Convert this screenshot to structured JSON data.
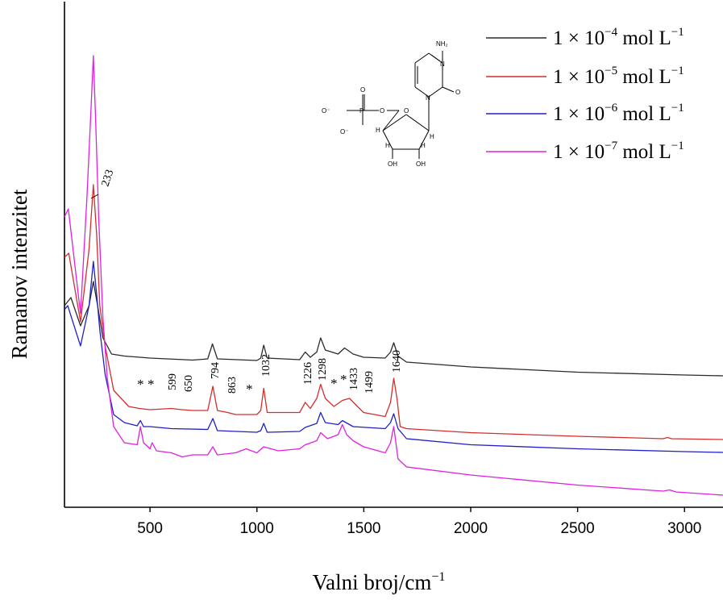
{
  "chart_data": {
    "type": "line",
    "xlabel": "Valni broj/cm",
    "xlabel_sup": "−1",
    "ylabel": "Ramanov intenzitet",
    "xlim": [
      100,
      3180
    ],
    "ylim": [
      0,
      100
    ],
    "x_ticks": [
      "500",
      "1000",
      "1500",
      "2000",
      "2500",
      "3000"
    ],
    "y_ticks_shown": false,
    "legend_position": "top-right",
    "series": [
      {
        "name": "1 × 10",
        "exp": "−4",
        "unit": " mol L",
        "unit_exp": "−1",
        "color": "#2b2b2b",
        "points": [
          [
            100,
            48
          ],
          [
            130,
            50
          ],
          [
            175,
            43
          ],
          [
            215,
            48
          ],
          [
            235,
            54
          ],
          [
            255,
            48
          ],
          [
            280,
            40
          ],
          [
            320,
            36
          ],
          [
            380,
            35.5
          ],
          [
            500,
            35
          ],
          [
            700,
            34.5
          ],
          [
            770,
            34.8
          ],
          [
            792,
            38.5
          ],
          [
            815,
            34.8
          ],
          [
            1000,
            34.4
          ],
          [
            1018,
            35
          ],
          [
            1032,
            38.2
          ],
          [
            1048,
            35
          ],
          [
            1200,
            34.6
          ],
          [
            1226,
            36.5
          ],
          [
            1250,
            35.2
          ],
          [
            1280,
            36.5
          ],
          [
            1298,
            40
          ],
          [
            1320,
            37
          ],
          [
            1380,
            36
          ],
          [
            1410,
            37.5
          ],
          [
            1450,
            36
          ],
          [
            1499,
            35.2
          ],
          [
            1600,
            35
          ],
          [
            1625,
            36.5
          ],
          [
            1640,
            38.8
          ],
          [
            1660,
            35.5
          ],
          [
            1700,
            34
          ],
          [
            2000,
            32.8
          ],
          [
            2500,
            31.5
          ],
          [
            3000,
            30.8
          ],
          [
            3180,
            30.6
          ]
        ]
      },
      {
        "name": "1 × 10",
        "exp": "−5",
        "unit": " mol L",
        "unit_exp": "−1",
        "color": "#d62d2d",
        "points": [
          [
            100,
            60
          ],
          [
            120,
            61
          ],
          [
            175,
            44
          ],
          [
            215,
            62
          ],
          [
            235,
            78
          ],
          [
            250,
            66
          ],
          [
            265,
            48
          ],
          [
            290,
            38
          ],
          [
            330,
            27
          ],
          [
            400,
            23
          ],
          [
            450,
            22.5
          ],
          [
            500,
            22.2
          ],
          [
            599,
            22.5
          ],
          [
            650,
            22.2
          ],
          [
            700,
            22
          ],
          [
            770,
            22
          ],
          [
            794,
            28
          ],
          [
            815,
            22
          ],
          [
            863,
            21.5
          ],
          [
            900,
            21
          ],
          [
            1000,
            21
          ],
          [
            1018,
            22
          ],
          [
            1032,
            27.5
          ],
          [
            1048,
            21.5
          ],
          [
            1200,
            21.5
          ],
          [
            1226,
            24
          ],
          [
            1250,
            22.5
          ],
          [
            1280,
            25
          ],
          [
            1298,
            28.5
          ],
          [
            1320,
            25
          ],
          [
            1360,
            23
          ],
          [
            1400,
            24.5
          ],
          [
            1433,
            25
          ],
          [
            1470,
            23
          ],
          [
            1499,
            21.5
          ],
          [
            1600,
            20.5
          ],
          [
            1625,
            24
          ],
          [
            1640,
            30
          ],
          [
            1655,
            25
          ],
          [
            1670,
            18
          ],
          [
            1700,
            17.5
          ],
          [
            2000,
            16.5
          ],
          [
            2500,
            15.6
          ],
          [
            2900,
            15
          ],
          [
            2920,
            15.3
          ],
          [
            2940,
            15
          ],
          [
            3180,
            14.8
          ]
        ]
      },
      {
        "name": "1 × 10",
        "exp": "−6",
        "unit": " mol L",
        "unit_exp": "−1",
        "color": "#2020c8",
        "points": [
          [
            100,
            47
          ],
          [
            115,
            48
          ],
          [
            175,
            38
          ],
          [
            215,
            48
          ],
          [
            235,
            59
          ],
          [
            250,
            51
          ],
          [
            265,
            42
          ],
          [
            290,
            31
          ],
          [
            330,
            21
          ],
          [
            380,
            19
          ],
          [
            440,
            18.2
          ],
          [
            455,
            19.5
          ],
          [
            470,
            18
          ],
          [
            500,
            18
          ],
          [
            600,
            17.5
          ],
          [
            770,
            17.3
          ],
          [
            794,
            20
          ],
          [
            815,
            17
          ],
          [
            1000,
            16.6
          ],
          [
            1018,
            17
          ],
          [
            1032,
            18.8
          ],
          [
            1048,
            16.6
          ],
          [
            1200,
            16.8
          ],
          [
            1226,
            17.8
          ],
          [
            1280,
            18.8
          ],
          [
            1298,
            21.5
          ],
          [
            1320,
            19
          ],
          [
            1380,
            18.5
          ],
          [
            1400,
            19.5
          ],
          [
            1450,
            18
          ],
          [
            1600,
            17.5
          ],
          [
            1625,
            19
          ],
          [
            1640,
            21.2
          ],
          [
            1660,
            17.5
          ],
          [
            1700,
            15
          ],
          [
            2000,
            13.5
          ],
          [
            2500,
            12.5
          ],
          [
            3000,
            11.8
          ],
          [
            3180,
            11.6
          ]
        ]
      },
      {
        "name": "1 × 10",
        "exp": "−7",
        "unit": " mol L",
        "unit_exp": "−1",
        "color": "#e020e0",
        "points": [
          [
            100,
            70
          ],
          [
            118,
            72
          ],
          [
            175,
            46
          ],
          [
            205,
            75
          ],
          [
            225,
            98
          ],
          [
            235,
            110
          ],
          [
            245,
            95
          ],
          [
            260,
            70
          ],
          [
            280,
            45
          ],
          [
            300,
            30
          ],
          [
            330,
            18
          ],
          [
            380,
            14
          ],
          [
            440,
            13.5
          ],
          [
            455,
            18
          ],
          [
            470,
            14
          ],
          [
            500,
            12.5
          ],
          [
            510,
            14
          ],
          [
            530,
            12
          ],
          [
            600,
            11.5
          ],
          [
            650,
            10.5
          ],
          [
            700,
            11
          ],
          [
            770,
            11
          ],
          [
            794,
            13
          ],
          [
            815,
            11
          ],
          [
            900,
            11.5
          ],
          [
            950,
            12.5
          ],
          [
            1000,
            11.5
          ],
          [
            1032,
            13
          ],
          [
            1100,
            12
          ],
          [
            1200,
            12.5
          ],
          [
            1226,
            13.5
          ],
          [
            1280,
            14.5
          ],
          [
            1298,
            16.5
          ],
          [
            1330,
            15
          ],
          [
            1380,
            16
          ],
          [
            1400,
            18.5
          ],
          [
            1420,
            16
          ],
          [
            1450,
            14.5
          ],
          [
            1499,
            13
          ],
          [
            1600,
            11.5
          ],
          [
            1625,
            14
          ],
          [
            1640,
            18
          ],
          [
            1660,
            10
          ],
          [
            1700,
            8
          ],
          [
            2000,
            6
          ],
          [
            2500,
            3.5
          ],
          [
            2900,
            2
          ],
          [
            2930,
            2.3
          ],
          [
            2960,
            1.8
          ],
          [
            3180,
            1
          ]
        ]
      }
    ],
    "annotations": [
      "233",
      "599",
      "650",
      "794",
      "863",
      "1032",
      "1226",
      "1298",
      "1433",
      "1499",
      "1640"
    ],
    "asterisks": [
      "*",
      "*",
      "*",
      "*",
      "*"
    ]
  }
}
